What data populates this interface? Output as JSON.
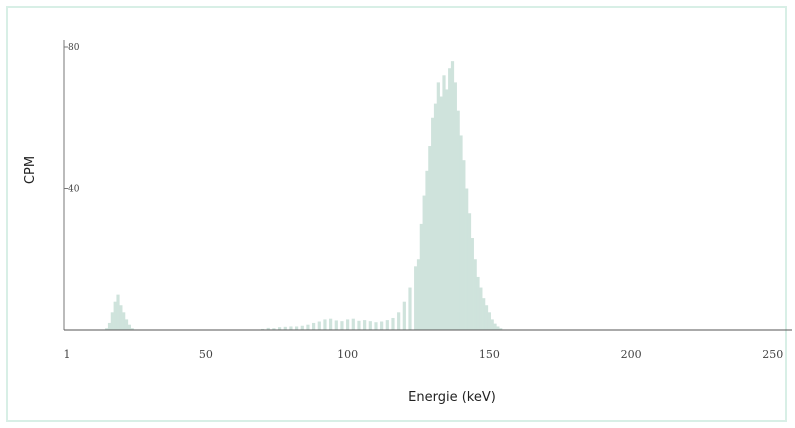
{
  "chart_data": {
    "type": "bar",
    "title": "",
    "xlabel": "Energie (keV)",
    "ylabel": "CPM",
    "xlim": [
      1,
      255
    ],
    "ylim": [
      0,
      80
    ],
    "x_ticks": [
      1,
      50,
      100,
      150,
      200,
      250
    ],
    "y_ticks": [
      40,
      80
    ],
    "grid": false,
    "bar_color": "#cfe3dc",
    "series": [
      {
        "x": [
          15,
          16,
          17,
          18,
          19,
          20,
          21,
          22,
          23,
          24,
          70,
          72,
          74,
          76,
          78,
          80,
          82,
          84,
          86,
          88,
          90,
          92,
          94,
          96,
          98,
          100,
          102,
          104,
          106,
          108,
          110,
          112,
          114,
          116,
          118,
          120,
          122,
          124,
          125,
          126,
          127,
          128,
          129,
          130,
          131,
          132,
          133,
          134,
          135,
          136,
          137,
          138,
          139,
          140,
          141,
          142,
          143,
          144,
          145,
          146,
          147,
          148,
          149,
          150,
          151,
          152,
          153,
          154
        ],
        "values": [
          0.5,
          2,
          5,
          8,
          10,
          7,
          5,
          3,
          1.5,
          0.5,
          0.3,
          0.6,
          0.5,
          0.8,
          0.9,
          1,
          1,
          1.2,
          1.5,
          2,
          2.4,
          3,
          3.2,
          2.7,
          2.5,
          3,
          3.2,
          2.6,
          2.8,
          2.5,
          2.2,
          2.4,
          2.8,
          3.4,
          5,
          8,
          12,
          18,
          20,
          30,
          38,
          45,
          52,
          60,
          64,
          70,
          66,
          72,
          68,
          74,
          76,
          70,
          62,
          55,
          48,
          40,
          33,
          26,
          20,
          15,
          12,
          9,
          7,
          5,
          3,
          1.8,
          1,
          0.5
        ]
      }
    ]
  }
}
